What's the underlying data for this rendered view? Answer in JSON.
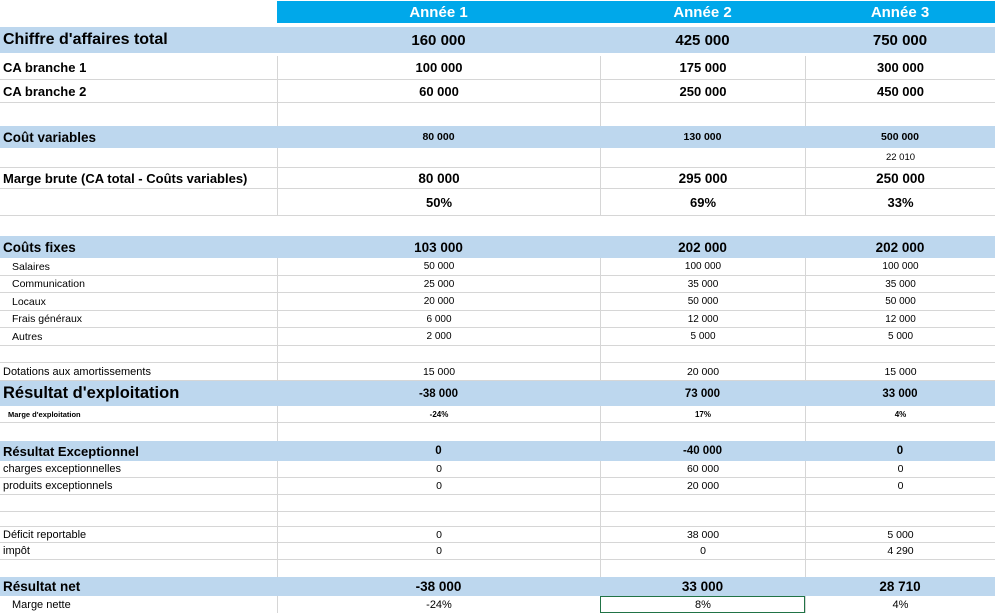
{
  "colors": {
    "header_bg": "#00A8EA",
    "header_text": "#FFFFFF",
    "band_bg": "#BDD7EE",
    "grid": "#D6D6D6",
    "selection_border": "#217346",
    "text": "#000000"
  },
  "columns": [
    "",
    "Année 1",
    "Année 2",
    "Année 3"
  ],
  "selected_cell": {
    "row": "Marge nette",
    "column": "Année 2",
    "value": "8%"
  },
  "rows": [
    {
      "kind": "total",
      "band": true,
      "label": "Chiffre d'affaires total",
      "values": [
        "160 000",
        "425 000",
        "750 000"
      ]
    },
    {
      "kind": "branch",
      "label": "CA branche 1",
      "values": [
        "100 000",
        "175 000",
        "300 000"
      ]
    },
    {
      "kind": "branch",
      "label": "CA branche 2",
      "values": [
        "60 000",
        "250 000",
        "450 000"
      ]
    },
    {
      "kind": "empty",
      "label": "",
      "values": [
        "",
        "",
        ""
      ]
    },
    {
      "kind": "band-sm",
      "band": true,
      "label": "Coût variables",
      "values": [
        "80 000",
        "130 000",
        "500 000"
      ]
    },
    {
      "kind": "note",
      "label": "",
      "values": [
        "",
        "",
        "22 010"
      ]
    },
    {
      "kind": "bold",
      "label": "Marge brute (CA total - Coûts variables)",
      "values": [
        "80 000",
        "295 000",
        "250 000"
      ]
    },
    {
      "kind": "pct",
      "label": "",
      "values": [
        "50%",
        "69%",
        "33%"
      ]
    },
    {
      "kind": "gap",
      "label": "",
      "values": [
        "",
        "",
        ""
      ]
    },
    {
      "kind": "band",
      "band": true,
      "label": "Coûts fixes",
      "values": [
        "103 000",
        "202 000",
        "202 000"
      ]
    },
    {
      "kind": "sub",
      "label": "Salaires",
      "values": [
        "50 000",
        "100 000",
        "100 000"
      ]
    },
    {
      "kind": "sub",
      "label": "Communication",
      "values": [
        "25 000",
        "35 000",
        "35 000"
      ]
    },
    {
      "kind": "sub",
      "label": "Locaux",
      "values": [
        "20 000",
        "50 000",
        "50 000"
      ]
    },
    {
      "kind": "sub",
      "label": "Frais généraux",
      "values": [
        "6 000",
        "12 000",
        "12 000"
      ]
    },
    {
      "kind": "sub",
      "label": "Autres",
      "values": [
        "2 000",
        "5 000",
        "5 000"
      ]
    },
    {
      "kind": "empty",
      "label": "",
      "values": [
        "",
        "",
        ""
      ]
    },
    {
      "kind": "reg",
      "label": "Dotations aux amortissements",
      "values": [
        "15 000",
        "20 000",
        "15 000"
      ]
    },
    {
      "kind": "band-xl",
      "band": true,
      "label": "Résultat d'exploitation",
      "values": [
        "-38 000",
        "73 000",
        "33 000"
      ]
    },
    {
      "kind": "tiny",
      "label": "Marge d'exploitation",
      "values": [
        "-24%",
        "17%",
        "4%"
      ]
    },
    {
      "kind": "empty",
      "label": "",
      "values": [
        "",
        "",
        ""
      ]
    },
    {
      "kind": "band2",
      "band": true,
      "label": "Résultat Exceptionnel",
      "values": [
        "0",
        "-40 000",
        "0"
      ]
    },
    {
      "kind": "reg",
      "label": "charges exceptionnelles",
      "values": [
        "0",
        "60 000",
        "0"
      ]
    },
    {
      "kind": "reg",
      "label": "produits exceptionnels",
      "values": [
        "0",
        "20 000",
        "0"
      ]
    },
    {
      "kind": "empty",
      "label": "",
      "values": [
        "",
        "",
        ""
      ]
    },
    {
      "kind": "empty",
      "label": "",
      "values": [
        "",
        "",
        ""
      ]
    },
    {
      "kind": "reg",
      "label": "Déficit reportable",
      "values": [
        "0",
        "38 000",
        "5 000"
      ]
    },
    {
      "kind": "reg",
      "label": "impôt",
      "values": [
        "0",
        "0",
        "4 290"
      ]
    },
    {
      "kind": "empty",
      "label": "",
      "values": [
        "",
        "",
        ""
      ]
    },
    {
      "kind": "band",
      "band": true,
      "label": "Résultat net",
      "values": [
        "-38 000",
        "33 000",
        "28 710"
      ]
    },
    {
      "kind": "subreg",
      "label": "Marge nette",
      "values": [
        "-24%",
        "8%",
        "4%"
      ],
      "sel": 1
    }
  ]
}
